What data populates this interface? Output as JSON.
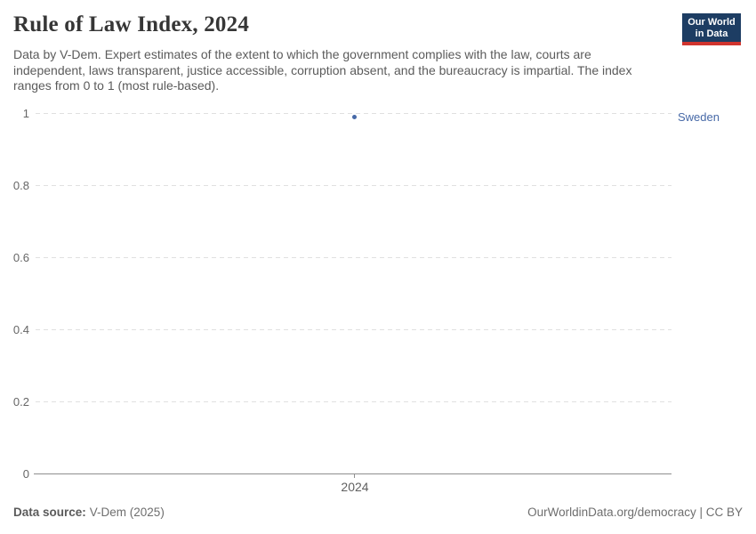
{
  "header": {
    "title": "Rule of Law Index, 2024",
    "subtitle": "Data by V-Dem. Expert estimates of the extent to which the government complies with the law, courts are independent, laws transparent, justice accessible, corruption absent, and the bureaucracy is impartial. The index ranges from 0 to 1 (most rule-based).",
    "logo": {
      "line1": "Our World",
      "line2": "in Data",
      "bg_color": "#1d3d63",
      "accent_color": "#d0342e"
    }
  },
  "chart_data": {
    "type": "scatter",
    "title": "Rule of Law Index, 2024",
    "x": [
      2024
    ],
    "series": [
      {
        "name": "Sweden",
        "values": [
          0.99
        ],
        "color": "#4769a7"
      }
    ],
    "xlabel": "",
    "ylabel": "",
    "ylim": [
      0,
      1
    ],
    "xticks": [
      "2024"
    ],
    "yticks": [
      "1",
      "0.8",
      "0.6",
      "0.4",
      "0.2",
      "0"
    ],
    "grid": "horizontal-dashed",
    "gridline_color": "#e0e0e0",
    "axis_color": "#8f8f8f",
    "legend_position": "right-of-point"
  },
  "footer": {
    "source_label": "Data source:",
    "source_value": "V-Dem (2025)",
    "credit": "OurWorldinData.org/democracy | CC BY"
  }
}
